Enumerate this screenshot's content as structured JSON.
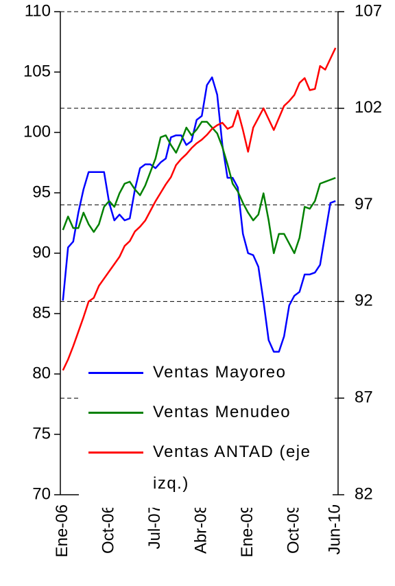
{
  "chart_data": {
    "type": "line",
    "categories": [
      "Ene-06",
      null,
      null,
      null,
      null,
      null,
      null,
      null,
      null,
      "Oct-06",
      null,
      null,
      null,
      null,
      null,
      null,
      null,
      null,
      "Jul-07",
      null,
      null,
      null,
      null,
      null,
      null,
      null,
      null,
      "Abr-08",
      null,
      null,
      null,
      null,
      null,
      null,
      null,
      null,
      "Ene-09",
      null,
      null,
      null,
      null,
      null,
      null,
      null,
      null,
      "Oct-09",
      null,
      null,
      null,
      null,
      null,
      null,
      null,
      "Jun-10"
    ],
    "series": [
      {
        "name": "Ventas Mayoreo",
        "color": "#0000ff",
        "axis": "y2",
        "values": [
          92.05,
          94.8,
          95.1,
          96.6,
          97.8,
          98.7,
          98.7,
          98.7,
          98.7,
          97.1,
          96.2,
          96.5,
          96.2,
          96.3,
          97.8,
          98.9,
          99.1,
          99.1,
          98.9,
          99.2,
          99.4,
          100.5,
          100.6,
          100.6,
          100.1,
          100.3,
          101.4,
          101.6,
          103.2,
          103.6,
          102.7,
          100.1,
          98.4,
          98.4,
          97.9,
          95.5,
          94.5,
          94.4,
          93.8,
          92.0,
          90.0,
          89.4,
          89.4,
          90.2,
          91.8,
          92.3,
          92.5,
          93.4,
          93.4,
          93.5,
          93.9,
          95.5,
          97.1,
          97.2
        ]
      },
      {
        "name": "Ventas Menudeo",
        "color": "#008000",
        "axis": "y2",
        "values": [
          95.7,
          96.4,
          95.8,
          95.8,
          96.6,
          96.0,
          95.6,
          96.0,
          96.9,
          97.2,
          96.9,
          97.6,
          98.1,
          98.2,
          97.8,
          97.5,
          98.0,
          98.7,
          99.4,
          100.5,
          100.6,
          100.1,
          99.7,
          100.3,
          101.0,
          100.6,
          100.9,
          101.3,
          101.3,
          101.0,
          100.7,
          100.0,
          99.1,
          98.1,
          97.7,
          97.1,
          96.6,
          96.2,
          96.5,
          97.6,
          96.2,
          94.5,
          95.5,
          95.5,
          95.0,
          94.5,
          95.3,
          96.9,
          96.8,
          97.2,
          98.1,
          98.2,
          98.3,
          98.4
        ]
      },
      {
        "name": "Ventas ANTAD (eje izq.)",
        "color": "#ff0000",
        "values": [
          80.3,
          81.2,
          82.3,
          83.5,
          84.7,
          86.0,
          86.3,
          87.3,
          87.9,
          88.5,
          89.1,
          89.7,
          90.6,
          91.0,
          91.8,
          92.2,
          92.7,
          93.5,
          94.3,
          95.0,
          95.7,
          96.3,
          97.3,
          97.8,
          98.2,
          98.7,
          99.1,
          99.4,
          99.8,
          100.3,
          100.6,
          100.8,
          100.3,
          100.5,
          101.8,
          100.2,
          98.4,
          100.4,
          101.2,
          102.0,
          101.1,
          100.2,
          101.2,
          102.2,
          102.6,
          103.1,
          104.1,
          104.5,
          103.5,
          103.6,
          105.5,
          105.2,
          106.1,
          107.0
        ]
      }
    ],
    "ylim": [
      70,
      110
    ],
    "yticks": [
      70,
      75,
      80,
      85,
      90,
      95,
      100,
      105,
      110
    ],
    "y2lim": [
      82,
      107
    ],
    "y2ticks": [
      82,
      87,
      92,
      97,
      102,
      107
    ],
    "grid": true,
    "legend": "bottom"
  }
}
